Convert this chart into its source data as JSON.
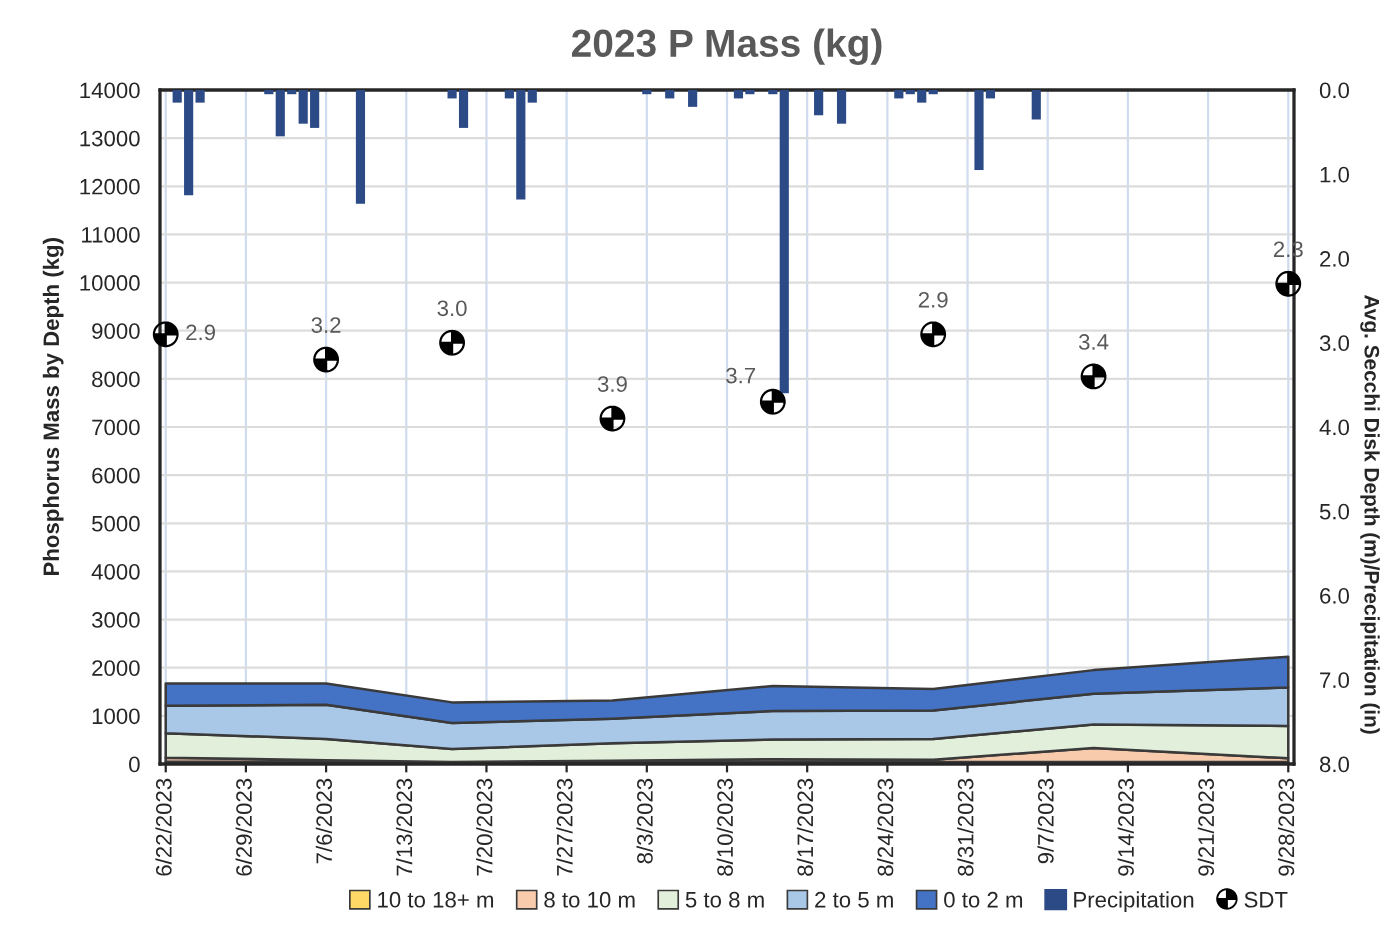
{
  "chart_data": {
    "type": "area",
    "title": "2023 P Mass (kg)",
    "ylabel": "Phosphorus Mass by Depth (kg)",
    "y2label": "Avg. Secchi Disk Depth (m)/Precipitation (in)",
    "x": [
      "2023-06-22",
      "2023-07-06",
      "2023-07-17",
      "2023-07-31",
      "2023-08-14",
      "2023-08-28",
      "2023-09-11",
      "2023-09-28"
    ],
    "stacked": true,
    "series": [
      {
        "name": "10 to 18+ m",
        "color": "#ffd966",
        "values": [
          50,
          40,
          20,
          30,
          40,
          40,
          40,
          40
        ]
      },
      {
        "name": "8 to 10 m",
        "color": "#f8cbad",
        "values": [
          80,
          40,
          20,
          40,
          60,
          50,
          290,
          80
        ]
      },
      {
        "name": "5 to 8 m",
        "color": "#e2efda",
        "values": [
          510,
          440,
          270,
          360,
          410,
          430,
          490,
          670
        ]
      },
      {
        "name": "2 to 5 m",
        "color": "#a9c8e8",
        "values": [
          570,
          710,
          540,
          510,
          590,
          590,
          640,
          800
        ]
      },
      {
        "name": "0 to 2 m",
        "color": "#4472c4",
        "values": [
          460,
          440,
          430,
          380,
          520,
          450,
          490,
          640
        ]
      },
      {
        "name": "Precipitation",
        "type": "bar",
        "axis": "y2",
        "color": "#2b4a86",
        "x": [
          "2023-06-23",
          "2023-06-24",
          "2023-06-25",
          "2023-07-01",
          "2023-07-02",
          "2023-07-03",
          "2023-07-04",
          "2023-07-05",
          "2023-07-09",
          "2023-07-17",
          "2023-07-18",
          "2023-07-22",
          "2023-07-23",
          "2023-07-24",
          "2023-08-03",
          "2023-08-05",
          "2023-08-07",
          "2023-08-11",
          "2023-08-12",
          "2023-08-14",
          "2023-08-15",
          "2023-08-18",
          "2023-08-20",
          "2023-08-25",
          "2023-08-26",
          "2023-08-27",
          "2023-08-28",
          "2023-09-01",
          "2023-09-02",
          "2023-09-06"
        ],
        "values": [
          0.15,
          1.25,
          0.15,
          0.05,
          0.55,
          0.05,
          0.4,
          0.45,
          1.35,
          0.1,
          0.45,
          0.1,
          1.3,
          0.15,
          0.05,
          0.1,
          0.2,
          0.1,
          0.05,
          0.05,
          3.6,
          0.3,
          0.4,
          0.1,
          0.05,
          0.15,
          0.05,
          0.95,
          0.1,
          0.35
        ]
      },
      {
        "name": "SDT",
        "type": "scatter",
        "axis": "y2",
        "color": "#000000",
        "marker": "circle",
        "values": [
          2.9,
          3.2,
          3.0,
          3.9,
          3.7,
          2.9,
          3.4,
          2.3
        ],
        "value_labels": [
          "2.9",
          "3.2",
          "3.0",
          "3.9",
          "3.7",
          "2.9",
          "3.4",
          "2.3"
        ]
      }
    ],
    "xlim": [
      "2023-06-21T12:00",
      "2023-09-28T12:00"
    ],
    "xticks": [
      {
        "value": "2023-06-22",
        "label": "6/22/2023"
      },
      {
        "value": "2023-06-29",
        "label": "6/29/2023"
      },
      {
        "value": "2023-07-06",
        "label": "7/6/2023"
      },
      {
        "value": "2023-07-13",
        "label": "7/13/2023"
      },
      {
        "value": "2023-07-20",
        "label": "7/20/2023"
      },
      {
        "value": "2023-07-27",
        "label": "7/27/2023"
      },
      {
        "value": "2023-08-03",
        "label": "8/3/2023"
      },
      {
        "value": "2023-08-10",
        "label": "8/10/2023"
      },
      {
        "value": "2023-08-17",
        "label": "8/17/2023"
      },
      {
        "value": "2023-08-24",
        "label": "8/24/2023"
      },
      {
        "value": "2023-08-31",
        "label": "8/31/2023"
      },
      {
        "value": "2023-09-07",
        "label": "9/7/2023"
      },
      {
        "value": "2023-09-14",
        "label": "9/14/2023"
      },
      {
        "value": "2023-09-21",
        "label": "9/21/2023"
      },
      {
        "value": "2023-09-28",
        "label": "9/28/2023"
      }
    ],
    "ylim": [
      0,
      14000
    ],
    "yticks": [
      0,
      1000,
      2000,
      3000,
      4000,
      5000,
      6000,
      7000,
      8000,
      9000,
      10000,
      11000,
      12000,
      13000,
      14000
    ],
    "y2lim": [
      8,
      0
    ],
    "y2ticks": [
      {
        "value": 0,
        "label": "0.0"
      },
      {
        "value": 1,
        "label": "1.0"
      },
      {
        "value": 2,
        "label": "2.0"
      },
      {
        "value": 3,
        "label": "3.0"
      },
      {
        "value": 4,
        "label": "4.0"
      },
      {
        "value": 5,
        "label": "5.0"
      },
      {
        "value": 6,
        "label": "6.0"
      },
      {
        "value": 7,
        "label": "7.0"
      },
      {
        "value": 8,
        "label": "8.0"
      }
    ],
    "grid": true,
    "legend": "bottom"
  }
}
